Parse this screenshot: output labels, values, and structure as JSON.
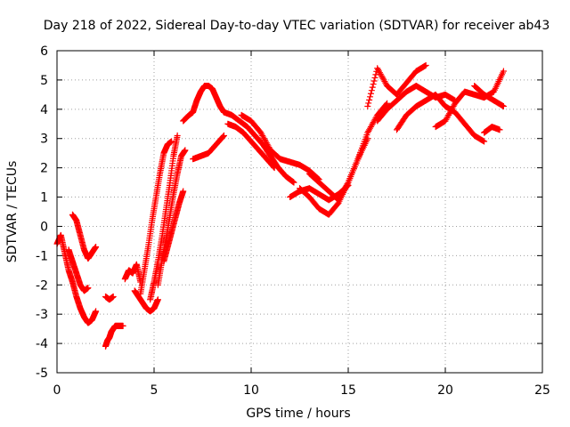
{
  "chart_data": {
    "type": "scatter",
    "title": "Day 218 of 2022, Sidereal Day-to-day VTEC variation (SDTVAR) for receiver ab43",
    "xlabel": "GPS time / hours",
    "ylabel": "SDTVAR / TECUs",
    "xlim": [
      0,
      25
    ],
    "ylim": [
      -5,
      6
    ],
    "xticks": [
      "0",
      "5",
      "10",
      "15",
      "20",
      "25"
    ],
    "yticks": [
      "-5",
      "-4",
      "-3",
      "-2",
      "-1",
      "0",
      "1",
      "2",
      "3",
      "4",
      "5",
      "6"
    ],
    "grid": true,
    "marker": "+",
    "color": "#ff0000",
    "series": [
      {
        "name": "s1",
        "x": [
          0.0,
          0.2,
          0.4,
          0.6,
          0.8,
          1.0,
          1.2,
          1.4,
          1.6,
          1.8,
          2.0
        ],
        "y": [
          -0.6,
          -0.3,
          -0.9,
          -1.5,
          -1.9,
          -2.4,
          -2.8,
          -3.1,
          -3.3,
          -3.2,
          -2.9
        ]
      },
      {
        "name": "s2",
        "x": [
          0.8,
          1.0,
          1.2,
          1.4,
          1.6,
          1.8,
          2.0
        ],
        "y": [
          0.4,
          0.2,
          -0.3,
          -0.8,
          -1.1,
          -0.9,
          -0.7
        ]
      },
      {
        "name": "s3",
        "x": [
          0.6,
          0.8,
          1.0,
          1.2,
          1.4,
          1.6
        ],
        "y": [
          -0.8,
          -1.2,
          -1.6,
          -2.0,
          -2.2,
          -2.1
        ]
      },
      {
        "name": "s4",
        "x": [
          2.5,
          2.6,
          2.7,
          2.8,
          2.9,
          3.0,
          3.2,
          3.4
        ],
        "y": [
          -4.1,
          -3.9,
          -3.8,
          -3.6,
          -3.5,
          -3.4,
          -3.4,
          -3.4
        ]
      },
      {
        "name": "s5",
        "x": [
          2.5,
          2.7,
          2.9
        ],
        "y": [
          -2.4,
          -2.5,
          -2.4
        ]
      },
      {
        "name": "s6",
        "x": [
          3.5,
          3.7,
          3.9,
          4.1,
          4.3
        ],
        "y": [
          -1.8,
          -1.5,
          -1.6,
          -1.3,
          -1.9
        ]
      },
      {
        "name": "s7",
        "x": [
          4.0,
          4.2,
          4.4,
          4.6,
          4.8,
          5.0,
          5.2
        ],
        "y": [
          -2.2,
          -2.4,
          -2.6,
          -2.8,
          -2.9,
          -2.8,
          -2.5
        ]
      },
      {
        "name": "s8",
        "x": [
          4.3,
          4.5,
          4.7,
          4.9,
          5.1,
          5.3,
          5.5,
          5.7,
          5.9
        ],
        "y": [
          -2.3,
          -1.5,
          -0.7,
          0.2,
          1.0,
          1.8,
          2.5,
          2.8,
          2.9
        ]
      },
      {
        "name": "s9",
        "x": [
          4.8,
          5.0,
          5.2,
          5.4,
          5.6,
          5.8,
          6.0,
          6.2
        ],
        "y": [
          -2.5,
          -1.9,
          -1.2,
          -0.4,
          0.5,
          1.4,
          2.4,
          3.1
        ]
      },
      {
        "name": "s10",
        "x": [
          5.2,
          5.4,
          5.6,
          5.8,
          6.0,
          6.2,
          6.4,
          6.6
        ],
        "y": [
          -2.0,
          -1.2,
          -0.5,
          0.3,
          1.1,
          1.8,
          2.4,
          2.6
        ]
      },
      {
        "name": "s11",
        "x": [
          5.5,
          5.7,
          5.9,
          6.1,
          6.3,
          6.5
        ],
        "y": [
          -1.2,
          -0.7,
          -0.2,
          0.3,
          0.8,
          1.2
        ]
      },
      {
        "name": "s12",
        "x": [
          6.5,
          6.8,
          7.0,
          7.2,
          7.4,
          7.6,
          7.8,
          8.0,
          8.2,
          8.4,
          8.6
        ],
        "y": [
          3.6,
          3.8,
          3.9,
          4.3,
          4.6,
          4.8,
          4.8,
          4.7,
          4.4,
          4.1,
          3.9
        ]
      },
      {
        "name": "s13",
        "x": [
          7.0,
          7.4,
          7.8,
          8.2,
          8.6
        ],
        "y": [
          2.3,
          2.4,
          2.5,
          2.8,
          3.1
        ]
      },
      {
        "name": "s14",
        "x": [
          8.6,
          9.0,
          9.4,
          9.8,
          10.2,
          10.6,
          11.0,
          11.4,
          11.8,
          12.2
        ],
        "y": [
          3.9,
          3.8,
          3.6,
          3.4,
          3.1,
          2.8,
          2.4,
          2.0,
          1.7,
          1.5
        ]
      },
      {
        "name": "s15",
        "x": [
          8.8,
          9.2,
          9.6,
          10.0,
          10.4,
          10.8,
          11.2
        ],
        "y": [
          3.5,
          3.4,
          3.2,
          2.9,
          2.6,
          2.3,
          2.0
        ]
      },
      {
        "name": "s16",
        "x": [
          9.5,
          10.0,
          10.5,
          11.0,
          11.5,
          12.0,
          12.5,
          13.0,
          13.5
        ],
        "y": [
          3.8,
          3.6,
          3.2,
          2.6,
          2.3,
          2.2,
          2.1,
          1.9,
          1.6
        ]
      },
      {
        "name": "s17",
        "x": [
          12.0,
          12.5,
          13.0,
          13.5,
          14.0,
          14.5,
          15.0
        ],
        "y": [
          1.0,
          1.2,
          1.3,
          1.1,
          0.9,
          1.1,
          1.4
        ]
      },
      {
        "name": "s18",
        "x": [
          12.5,
          13.0,
          13.5,
          14.0,
          14.5,
          15.0,
          15.5,
          16.0
        ],
        "y": [
          1.3,
          1.0,
          0.6,
          0.4,
          0.8,
          1.5,
          2.3,
          3.0
        ]
      },
      {
        "name": "s19",
        "x": [
          13.0,
          13.5,
          14.0,
          14.5,
          15.0,
          15.5,
          16.0,
          16.5,
          17.0
        ],
        "y": [
          1.8,
          1.5,
          1.2,
          0.9,
          1.5,
          2.3,
          3.2,
          3.8,
          4.2
        ]
      },
      {
        "name": "s20",
        "x": [
          16.0,
          16.5,
          17.0,
          17.5,
          18.0,
          18.5,
          19.0
        ],
        "y": [
          4.1,
          5.4,
          4.8,
          4.5,
          4.9,
          5.3,
          5.5
        ]
      },
      {
        "name": "s21",
        "x": [
          16.5,
          17.0,
          17.5,
          18.0,
          18.5,
          19.0,
          19.5,
          20.0,
          20.5
        ],
        "y": [
          3.6,
          4.0,
          4.3,
          4.6,
          4.8,
          4.6,
          4.4,
          4.5,
          4.3
        ]
      },
      {
        "name": "s22",
        "x": [
          17.5,
          18.0,
          18.5,
          19.0,
          19.5,
          20.0,
          20.5,
          21.0,
          21.5,
          22.0
        ],
        "y": [
          3.3,
          3.8,
          4.1,
          4.3,
          4.5,
          4.1,
          3.9,
          3.5,
          3.1,
          2.9
        ]
      },
      {
        "name": "s23",
        "x": [
          19.5,
          20.0,
          20.5,
          21.0,
          21.5,
          22.0,
          22.5,
          23.0
        ],
        "y": [
          3.4,
          3.6,
          4.2,
          4.6,
          4.5,
          4.4,
          4.6,
          5.3
        ]
      },
      {
        "name": "s24",
        "x": [
          21.5,
          22.0,
          22.5,
          23.0
        ],
        "y": [
          4.8,
          4.5,
          4.3,
          4.1
        ]
      },
      {
        "name": "s25",
        "x": [
          22.0,
          22.4,
          22.8
        ],
        "y": [
          3.2,
          3.4,
          3.3
        ]
      }
    ]
  }
}
